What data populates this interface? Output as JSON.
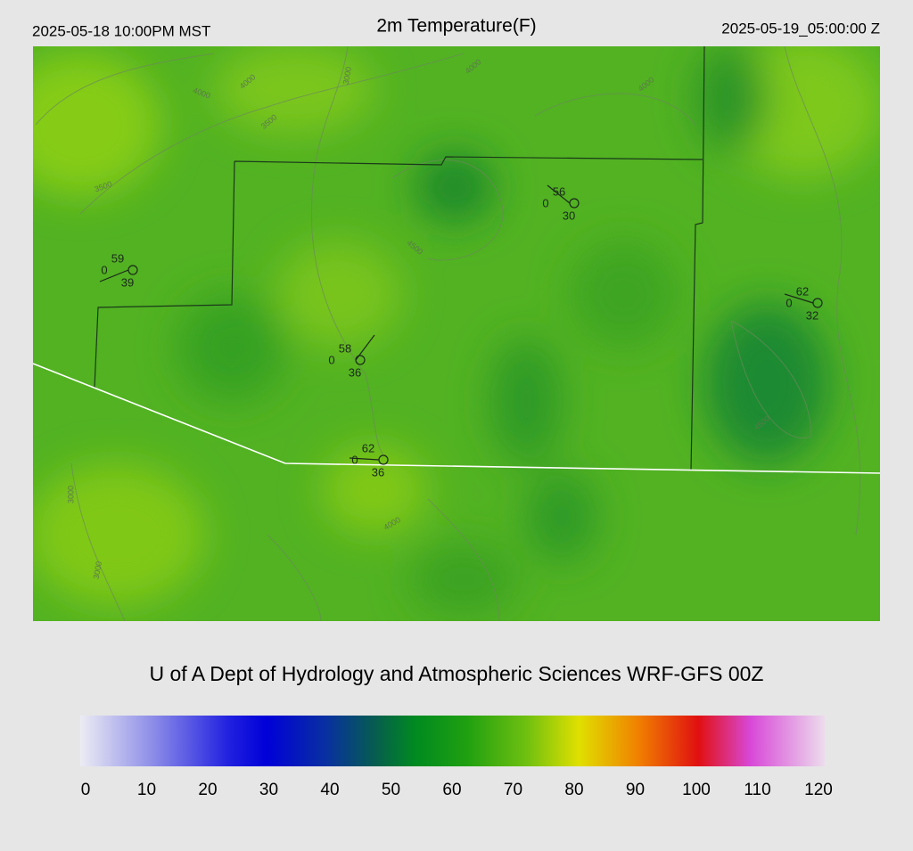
{
  "header": {
    "valid_local": "2025-05-18 10:00PM MST",
    "title": "2m Temperature(F)",
    "valid_utc": "2025-05-19_05:00:00 Z"
  },
  "map": {
    "stations": [
      {
        "temperature": 59,
        "dewpoint": 39,
        "wind": 0
      },
      {
        "temperature": 56,
        "dewpoint": 30,
        "wind": 0
      },
      {
        "temperature": 62,
        "dewpoint": 32,
        "wind": 0
      },
      {
        "temperature": 58,
        "dewpoint": 36,
        "wind": 0
      },
      {
        "temperature": 62,
        "dewpoint": 36,
        "wind": 0
      }
    ],
    "contour_labels": [
      "3000",
      "4000",
      "4000",
      "3500",
      "3500",
      "4000",
      "4500",
      "4000",
      "3000",
      "4000",
      "3000",
      "4500"
    ]
  },
  "footer": {
    "credit": "U of A Dept of Hydrology and Atmospheric Sciences WRF-GFS 00Z"
  },
  "colorbar": {
    "ticks": [
      0,
      10,
      20,
      30,
      40,
      50,
      60,
      70,
      80,
      90,
      100,
      110,
      120
    ]
  }
}
